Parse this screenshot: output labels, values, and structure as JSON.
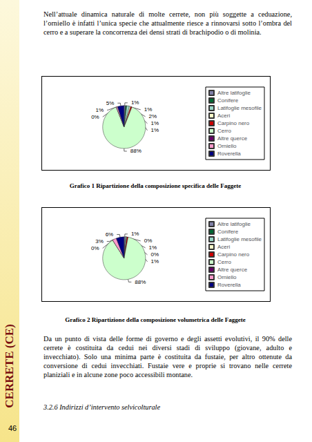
{
  "side_label": "CERRETE (CE)",
  "page_number": "46",
  "paragraphs": [
    "Nell’attuale dinamica naturale di molte cerrete, non più soggette a ceduazione, l’orniello è infatti l’unica specie che attualmente riesce a rinnovarsi sotto l’ombra del cerro e a superare la concorrenza dei densi strati di brachipodio o di molinia.",
    "Da un punto di vista delle forme di governo e degli assetti evolutivi, il 90% delle cerrete è costituita da cedui nei diversi stadi di sviluppo (giovane, adulto e invecchiato). Solo una minima parte è costituita da fustaie, per altro ottenute da conversione di cedui invecchiati. Fustaie vere e proprie si trovano nelle cerrete planiziali e in alcune zone poco accessibili montane."
  ],
  "heading": "3.2.6 Indirizzi d’intervento selvicolturale",
  "chart_data": [
    {
      "type": "pie",
      "title": "Grafico 1 Ripartizione della composizione specifica delle Faggete",
      "categories": [
        "Altre latifoglie",
        "Conifere",
        "Latifoglie mesofile",
        "Aceri",
        "Carpino nero",
        "Cerro",
        "Altre querce",
        "Orniello",
        "Roverella"
      ],
      "values": [
        1,
        1,
        2,
        1,
        1,
        88,
        0,
        1,
        5
      ],
      "value_labels": [
        "1%",
        "1%",
        "2%",
        "1%",
        "1%",
        "88%",
        "0%",
        "1%",
        "5%"
      ],
      "colors": [
        "#8080a8",
        "#006633",
        "#99d8c8",
        "#ffffcc",
        "#cc0000",
        "#ccffcc",
        "#660066",
        "#ff99cc",
        "#000080"
      ],
      "legend": "right",
      "data_labels": true
    },
    {
      "type": "pie",
      "title": "Grafico 2 Ripartizione della composizione volumetrica delle Faggete",
      "categories": [
        "Altre latifoglie",
        "Conifere",
        "Latifoglie mesofile",
        "Aceri",
        "Carpino nero",
        "Cerro",
        "Altre querce",
        "Orniello",
        "Roverella"
      ],
      "values": [
        1,
        0,
        1,
        0,
        1,
        88,
        0,
        3,
        6
      ],
      "value_labels": [
        "1%",
        "0%",
        "1%",
        "0%",
        "1%",
        "88%",
        "0%",
        "3%",
        "6%"
      ],
      "colors": [
        "#8080a8",
        "#006633",
        "#99d8c8",
        "#ffffcc",
        "#cc0000",
        "#ccffcc",
        "#660066",
        "#ff99cc",
        "#000080"
      ],
      "legend": "right",
      "data_labels": true
    }
  ]
}
